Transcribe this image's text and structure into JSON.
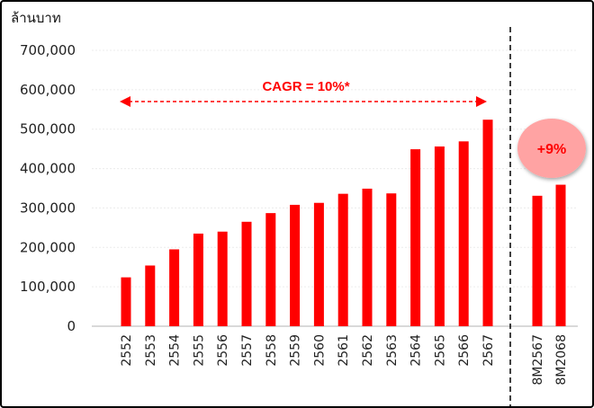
{
  "chart_data": {
    "type": "bar",
    "unit_label": "ล้านบาท",
    "categories": [
      "2552",
      "2553",
      "2554",
      "2555",
      "2556",
      "2557",
      "2558",
      "2559",
      "2560",
      "2561",
      "2562",
      "2563",
      "2564",
      "2565",
      "2566",
      "2567",
      "8M2567",
      "8M2068"
    ],
    "values": [
      124000,
      154000,
      195000,
      235000,
      240000,
      265000,
      287000,
      308000,
      313000,
      336000,
      349000,
      337000,
      449000,
      456000,
      469000,
      524000,
      331000,
      359000
    ],
    "ylim": [
      0,
      700000
    ],
    "yticks": [
      0,
      100000,
      200000,
      300000,
      400000,
      500000,
      600000,
      700000
    ],
    "ytick_labels": [
      "0",
      "100,000",
      "200,000",
      "300,000",
      "400,000",
      "500,000",
      "600,000",
      "700,000"
    ],
    "grid": true,
    "bar_color": "#ff0000",
    "annotations": {
      "cagr": "CAGR = 10%*",
      "growth": "+9%"
    }
  }
}
